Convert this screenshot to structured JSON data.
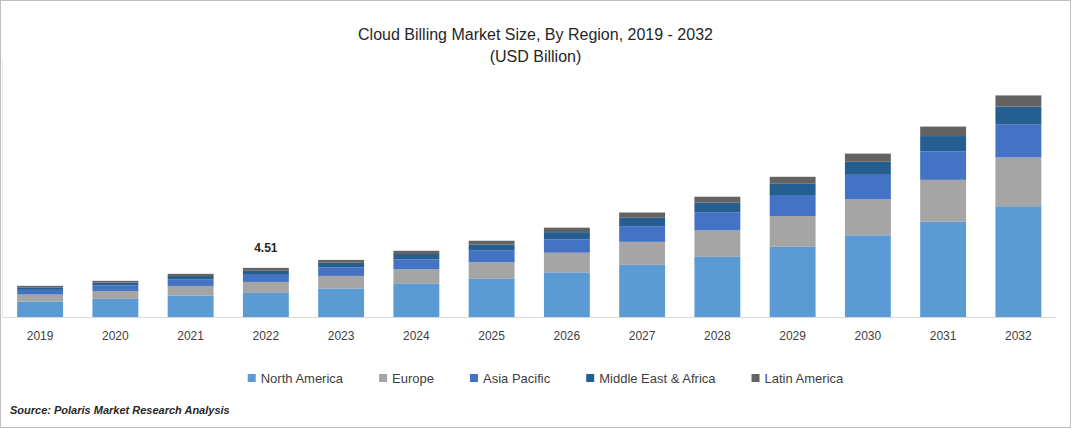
{
  "chart_data": {
    "type": "bar",
    "title": "Cloud Billing Market Size, By Region, 2019 - 2032",
    "subtitle": "(USD Billion)",
    "source": "Source: Polaris Market Research Analysis",
    "stacked": true,
    "grid": false,
    "tick_labels": "x",
    "legend": "bottom",
    "categories": [
      "2019",
      "2020",
      "2021",
      "2022",
      "2023",
      "2024",
      "2025",
      "2026",
      "2027",
      "2028",
      "2029",
      "2030",
      "2031",
      "2032"
    ],
    "series": [
      {
        "name": "North America",
        "color": "#5b9bd5",
        "values": [
          1.43,
          1.66,
          1.98,
          2.21,
          2.62,
          3.04,
          3.5,
          4.1,
          4.79,
          5.52,
          6.44,
          7.5,
          8.74,
          10.17
        ]
      },
      {
        "name": "Europe",
        "color": "#a5a5a5",
        "values": [
          0.63,
          0.73,
          0.87,
          1.01,
          1.15,
          1.34,
          1.54,
          1.8,
          2.11,
          2.43,
          2.83,
          3.3,
          3.85,
          4.47
        ]
      },
      {
        "name": "Asia Pacific",
        "color": "#4472c4",
        "values": [
          0.43,
          0.5,
          0.59,
          0.65,
          0.79,
          0.91,
          1.05,
          1.23,
          1.44,
          1.66,
          1.93,
          2.25,
          2.62,
          3.05
        ]
      },
      {
        "name": "Middle East & Africa",
        "color": "#255e91",
        "values": [
          0.23,
          0.26,
          0.32,
          0.37,
          0.42,
          0.49,
          0.56,
          0.66,
          0.77,
          0.88,
          1.03,
          1.2,
          1.4,
          1.63
        ]
      },
      {
        "name": "Latin America",
        "color": "#636363",
        "values": [
          0.14,
          0.17,
          0.2,
          0.27,
          0.26,
          0.3,
          0.35,
          0.41,
          0.48,
          0.55,
          0.64,
          0.75,
          0.87,
          1.02
        ]
      }
    ],
    "ylim": [
      0,
      23.5
    ],
    "annotations": [
      {
        "x": "2022",
        "value": 4.51,
        "label": "4.51"
      }
    ]
  }
}
